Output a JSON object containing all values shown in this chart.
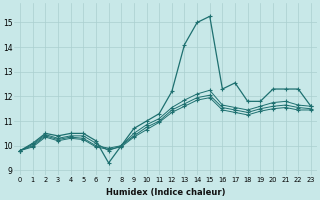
{
  "xlabel": "Humidex (Indice chaleur)",
  "xlim": [
    -0.5,
    23.5
  ],
  "ylim": [
    8.8,
    15.8
  ],
  "yticks": [
    9,
    10,
    11,
    12,
    13,
    14,
    15
  ],
  "xticks": [
    0,
    1,
    2,
    3,
    4,
    5,
    6,
    7,
    8,
    9,
    10,
    11,
    12,
    13,
    14,
    15,
    16,
    17,
    18,
    19,
    20,
    21,
    22,
    23
  ],
  "bg_color": "#c8e8e8",
  "grid_color": "#aacfcf",
  "line_color": "#1e7070",
  "lines": [
    [
      9.8,
      10.1,
      10.5,
      10.4,
      10.5,
      10.5,
      10.2,
      9.3,
      10.0,
      10.7,
      11.0,
      11.3,
      12.2,
      14.1,
      15.0,
      15.25,
      12.3,
      12.55,
      11.8,
      11.8,
      12.3,
      12.3,
      12.3,
      11.6
    ],
    [
      9.8,
      10.05,
      10.45,
      10.3,
      10.4,
      10.4,
      10.1,
      9.8,
      10.0,
      10.5,
      10.85,
      11.1,
      11.55,
      11.85,
      12.1,
      12.25,
      11.65,
      11.55,
      11.45,
      11.6,
      11.75,
      11.8,
      11.65,
      11.6
    ],
    [
      9.8,
      10.0,
      10.4,
      10.25,
      10.35,
      10.3,
      10.0,
      9.9,
      10.0,
      10.4,
      10.75,
      11.0,
      11.45,
      11.7,
      11.95,
      12.05,
      11.55,
      11.45,
      11.35,
      11.5,
      11.6,
      11.65,
      11.55,
      11.5
    ],
    [
      9.8,
      9.95,
      10.35,
      10.2,
      10.3,
      10.25,
      9.95,
      9.85,
      9.95,
      10.35,
      10.65,
      10.95,
      11.35,
      11.6,
      11.85,
      11.95,
      11.45,
      11.35,
      11.25,
      11.4,
      11.5,
      11.55,
      11.45,
      11.45
    ]
  ]
}
